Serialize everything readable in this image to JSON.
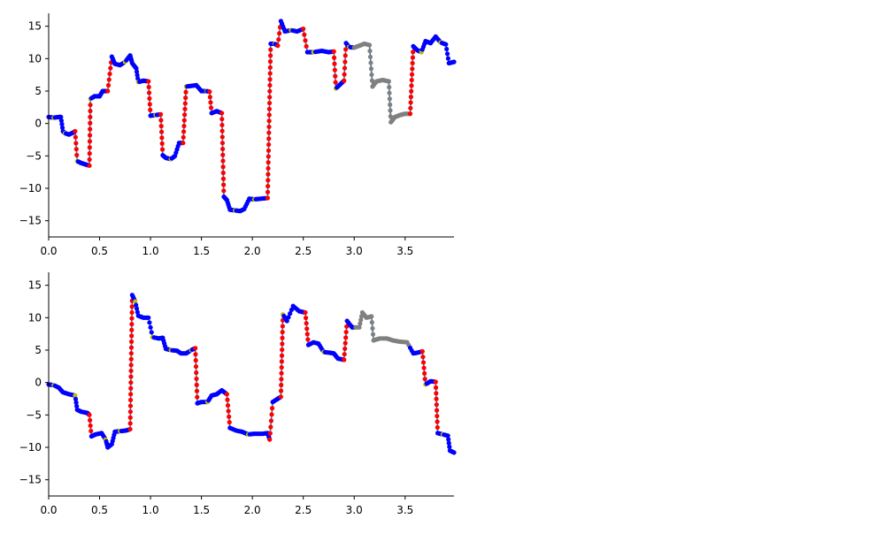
{
  "chart_data": [
    {
      "type": "line",
      "title": "",
      "xlabel": "",
      "ylabel": "",
      "xlim": [
        0.0,
        3.98
      ],
      "ylim": [
        -17.5,
        17.0
      ],
      "xticks": [
        "0.0",
        "0.5",
        "1.0",
        "1.5",
        "2.0",
        "2.5",
        "3.0",
        "3.5"
      ],
      "yticks": [
        "−15",
        "−10",
        "−5",
        "0",
        "5",
        "10",
        "15"
      ],
      "grid": false,
      "line_color": "#1f77b4",
      "marker_colors": {
        "blue": "#0000ff",
        "red": "#ff0000",
        "yellow": "#bfbf00",
        "gray": "#808080"
      },
      "series": [
        {
          "values": [
            [
              0.0,
              1.0
            ],
            [
              0.05,
              0.9
            ],
            [
              0.1,
              1.0
            ],
            [
              0.12,
              1.0
            ],
            [
              0.14,
              -1.2
            ],
            [
              0.16,
              -1.5
            ],
            [
              0.2,
              -1.7
            ],
            [
              0.24,
              -1.4
            ],
            [
              0.26,
              -1.2
            ],
            [
              0.28,
              -5.8
            ],
            [
              0.32,
              -6.1
            ],
            [
              0.36,
              -6.3
            ],
            [
              0.4,
              -6.5
            ],
            [
              0.41,
              3.8
            ],
            [
              0.45,
              4.2
            ],
            [
              0.5,
              4.2
            ],
            [
              0.53,
              5.0
            ],
            [
              0.58,
              5.0
            ],
            [
              0.62,
              10.3
            ],
            [
              0.65,
              9.2
            ],
            [
              0.7,
              9.0
            ],
            [
              0.75,
              9.5
            ],
            [
              0.8,
              10.5
            ],
            [
              0.82,
              9.3
            ],
            [
              0.86,
              8.5
            ],
            [
              0.88,
              6.4
            ],
            [
              0.93,
              6.6
            ],
            [
              0.98,
              6.5
            ],
            [
              1.0,
              1.2
            ],
            [
              1.05,
              1.3
            ],
            [
              1.1,
              1.4
            ],
            [
              1.12,
              -4.9
            ],
            [
              1.15,
              -5.3
            ],
            [
              1.2,
              -5.5
            ],
            [
              1.24,
              -5.0
            ],
            [
              1.28,
              -3.0
            ],
            [
              1.32,
              -3.0
            ],
            [
              1.35,
              5.7
            ],
            [
              1.4,
              5.8
            ],
            [
              1.45,
              5.9
            ],
            [
              1.5,
              5.0
            ],
            [
              1.55,
              5.0
            ],
            [
              1.58,
              4.9
            ],
            [
              1.6,
              1.6
            ],
            [
              1.65,
              1.9
            ],
            [
              1.7,
              1.6
            ],
            [
              1.72,
              -11.3
            ],
            [
              1.75,
              -11.8
            ],
            [
              1.78,
              -13.3
            ],
            [
              1.83,
              -13.4
            ],
            [
              1.88,
              -13.5
            ],
            [
              1.92,
              -13.2
            ],
            [
              1.97,
              -11.6
            ],
            [
              2.02,
              -11.7
            ],
            [
              2.08,
              -11.6
            ],
            [
              2.15,
              -11.5
            ],
            [
              2.18,
              12.3
            ],
            [
              2.22,
              12.3
            ],
            [
              2.25,
              12.0
            ],
            [
              2.28,
              15.8
            ],
            [
              2.32,
              14.2
            ],
            [
              2.38,
              14.4
            ],
            [
              2.44,
              14.2
            ],
            [
              2.5,
              14.6
            ],
            [
              2.54,
              11.0
            ],
            [
              2.6,
              11.0
            ],
            [
              2.68,
              11.2
            ],
            [
              2.75,
              11.0
            ],
            [
              2.8,
              11.1
            ],
            [
              2.82,
              5.4
            ],
            [
              2.86,
              6.0
            ],
            [
              2.9,
              6.6
            ],
            [
              2.92,
              12.4
            ],
            [
              2.95,
              11.8
            ],
            [
              3.0,
              11.7
            ],
            [
              3.05,
              12.0
            ],
            [
              3.1,
              12.3
            ],
            [
              3.15,
              12.1
            ],
            [
              3.18,
              5.7
            ],
            [
              3.22,
              6.5
            ],
            [
              3.28,
              6.7
            ],
            [
              3.34,
              6.5
            ],
            [
              3.36,
              0.2
            ],
            [
              3.4,
              1.0
            ],
            [
              3.45,
              1.3
            ],
            [
              3.5,
              1.5
            ],
            [
              3.55,
              1.5
            ],
            [
              3.58,
              11.9
            ],
            [
              3.62,
              11.3
            ],
            [
              3.66,
              11.0
            ],
            [
              3.7,
              12.7
            ],
            [
              3.75,
              12.4
            ],
            [
              3.8,
              13.4
            ],
            [
              3.85,
              12.5
            ],
            [
              3.9,
              12.2
            ],
            [
              3.93,
              9.3
            ],
            [
              3.98,
              9.5
            ]
          ]
        }
      ]
    },
    {
      "type": "line",
      "title": "",
      "xlabel": "",
      "ylabel": "",
      "xlim": [
        0.0,
        3.98
      ],
      "ylim": [
        -17.5,
        17.0
      ],
      "xticks": [
        "0.0",
        "0.5",
        "1.0",
        "1.5",
        "2.0",
        "2.5",
        "3.0",
        "3.5"
      ],
      "yticks": [
        "−15",
        "−10",
        "−5",
        "0",
        "5",
        "10",
        "15"
      ],
      "grid": false,
      "line_color": "#1f77b4",
      "marker_colors": {
        "blue": "#0000ff",
        "red": "#ff0000",
        "yellow": "#bfbf00",
        "gray": "#808080"
      },
      "series": [
        {
          "values": [
            [
              0.0,
              -0.3
            ],
            [
              0.05,
              -0.4
            ],
            [
              0.1,
              -0.8
            ],
            [
              0.14,
              -1.5
            ],
            [
              0.2,
              -1.8
            ],
            [
              0.26,
              -2.0
            ],
            [
              0.28,
              -4.2
            ],
            [
              0.32,
              -4.5
            ],
            [
              0.38,
              -4.7
            ],
            [
              0.4,
              -5.0
            ],
            [
              0.42,
              -8.3
            ],
            [
              0.46,
              -8.0
            ],
            [
              0.52,
              -7.8
            ],
            [
              0.56,
              -8.8
            ],
            [
              0.58,
              -10.0
            ],
            [
              0.62,
              -9.5
            ],
            [
              0.65,
              -7.6
            ],
            [
              0.7,
              -7.5
            ],
            [
              0.76,
              -7.4
            ],
            [
              0.8,
              -7.2
            ],
            [
              0.82,
              13.5
            ],
            [
              0.85,
              12.5
            ],
            [
              0.88,
              10.3
            ],
            [
              0.93,
              10.0
            ],
            [
              0.98,
              10.0
            ],
            [
              1.02,
              7.0
            ],
            [
              1.08,
              6.8
            ],
            [
              1.12,
              6.9
            ],
            [
              1.15,
              5.2
            ],
            [
              1.2,
              5.0
            ],
            [
              1.26,
              4.9
            ],
            [
              1.3,
              4.5
            ],
            [
              1.35,
              4.5
            ],
            [
              1.4,
              5.0
            ],
            [
              1.44,
              5.3
            ],
            [
              1.46,
              -3.2
            ],
            [
              1.5,
              -3.0
            ],
            [
              1.56,
              -3.0
            ],
            [
              1.6,
              -2.0
            ],
            [
              1.65,
              -1.8
            ],
            [
              1.7,
              -1.2
            ],
            [
              1.75,
              -1.8
            ],
            [
              1.78,
              -7.0
            ],
            [
              1.84,
              -7.4
            ],
            [
              1.9,
              -7.6
            ],
            [
              1.96,
              -8.0
            ],
            [
              2.02,
              -7.9
            ],
            [
              2.1,
              -7.9
            ],
            [
              2.15,
              -7.8
            ],
            [
              2.17,
              -8.8
            ],
            [
              2.2,
              -3.0
            ],
            [
              2.24,
              -2.6
            ],
            [
              2.28,
              -2.2
            ],
            [
              2.3,
              10.5
            ],
            [
              2.34,
              9.5
            ],
            [
              2.4,
              11.8
            ],
            [
              2.46,
              11.0
            ],
            [
              2.52,
              10.8
            ],
            [
              2.55,
              5.8
            ],
            [
              2.6,
              6.2
            ],
            [
              2.65,
              6.0
            ],
            [
              2.7,
              4.7
            ],
            [
              2.76,
              4.6
            ],
            [
              2.8,
              4.5
            ],
            [
              2.84,
              3.7
            ],
            [
              2.9,
              3.5
            ],
            [
              2.93,
              9.5
            ],
            [
              2.98,
              8.5
            ],
            [
              3.05,
              8.5
            ],
            [
              3.08,
              10.8
            ],
            [
              3.12,
              10.0
            ],
            [
              3.17,
              10.2
            ],
            [
              3.19,
              6.5
            ],
            [
              3.25,
              6.8
            ],
            [
              3.32,
              6.8
            ],
            [
              3.38,
              6.5
            ],
            [
              3.45,
              6.3
            ],
            [
              3.52,
              6.2
            ],
            [
              3.58,
              4.5
            ],
            [
              3.62,
              4.6
            ],
            [
              3.67,
              4.8
            ],
            [
              3.7,
              -0.3
            ],
            [
              3.75,
              0.2
            ],
            [
              3.8,
              0.1
            ],
            [
              3.82,
              -7.8
            ],
            [
              3.87,
              -8.0
            ],
            [
              3.92,
              -8.2
            ],
            [
              3.94,
              -10.5
            ],
            [
              3.98,
              -10.8
            ]
          ]
        }
      ]
    }
  ]
}
